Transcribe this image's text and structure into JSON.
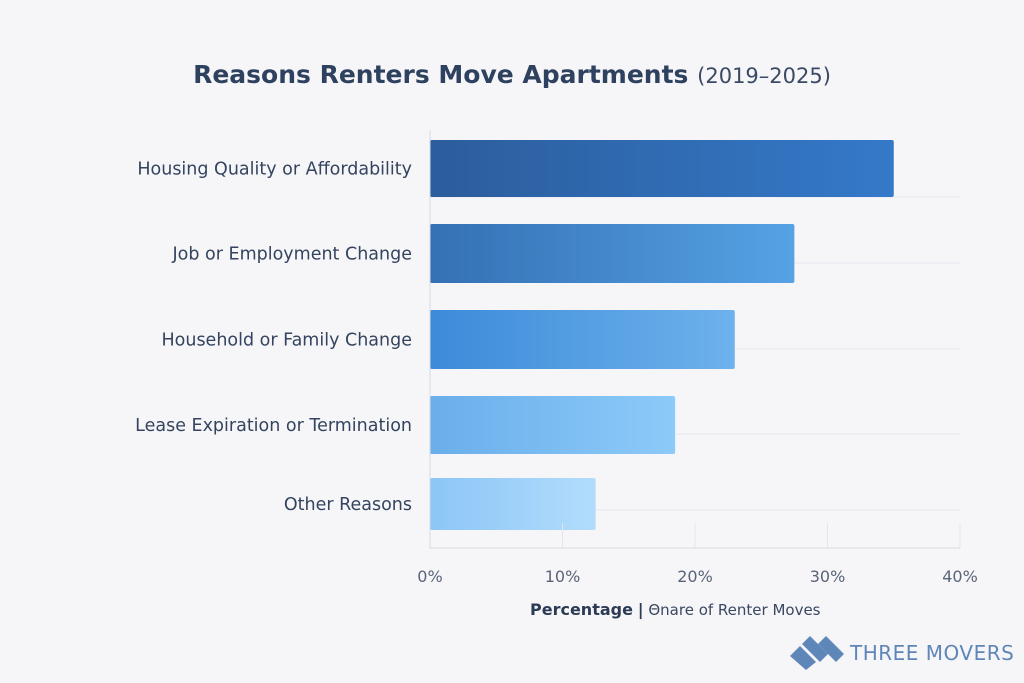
{
  "chart_data": {
    "type": "bar",
    "orientation": "horizontal",
    "title": "Reasons Renters Move Apartments",
    "subtitle": "(2019–2025)",
    "categories": [
      "Housing Quality or Affordability",
      "Job or Employment Change",
      "Household or Family Change",
      "Lease Expiration or Termination",
      "Other Reasons"
    ],
    "values": [
      35,
      27.5,
      23,
      18.5,
      12.5
    ],
    "colors": [
      [
        "#2c5d9c",
        "#3479c9"
      ],
      [
        "#3470b4",
        "#55a2e4"
      ],
      [
        "#3d8ad9",
        "#6db2ec"
      ],
      [
        "#6aaeea",
        "#8ccaf9"
      ],
      [
        "#8cc6f6",
        "#b2dcfc"
      ]
    ],
    "xlabel_bold": "Percentage",
    "xlabel_sep": "|",
    "xlabel_rest": "Θnare of Renter Moves",
    "xlim": [
      0,
      40
    ],
    "xticks": [
      "0%",
      "10%",
      "20%",
      "30%",
      "40%"
    ],
    "xtick_values": [
      0,
      10,
      20,
      30,
      40
    ],
    "grid": true
  },
  "brand": {
    "name": "THREE MOVERS",
    "color": "#5f86b8"
  }
}
